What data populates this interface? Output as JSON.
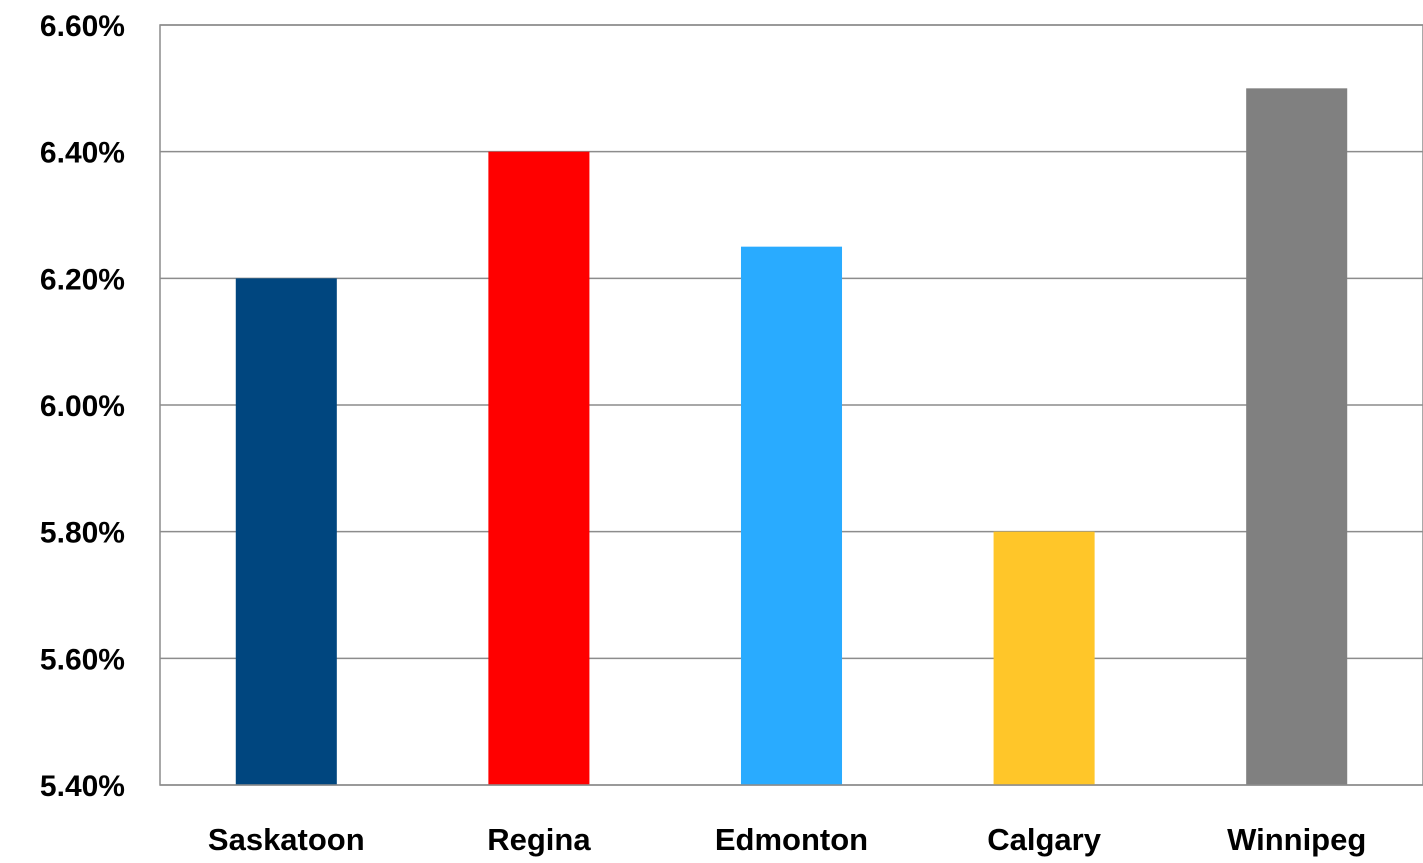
{
  "chart_data": {
    "type": "bar",
    "title": "",
    "xlabel": "",
    "ylabel": "",
    "categories": [
      "Saskatoon",
      "Regina",
      "Edmonton",
      "Calgary",
      "Winnipeg"
    ],
    "values": [
      6.2,
      6.4,
      6.25,
      5.8,
      6.5
    ],
    "value_unit": "%",
    "colors": [
      "#00467f",
      "#ff0000",
      "#29abff",
      "#ffc629",
      "#808080"
    ],
    "ylim": [
      5.4,
      6.6
    ],
    "yticks": [
      5.4,
      5.6,
      5.8,
      6.0,
      6.2,
      6.4,
      6.6
    ],
    "ytick_labels": [
      "5.40%",
      "5.60%",
      "5.80%",
      "6.00%",
      "6.20%",
      "6.40%",
      "6.60%"
    ],
    "grid": true,
    "legend": "none"
  }
}
